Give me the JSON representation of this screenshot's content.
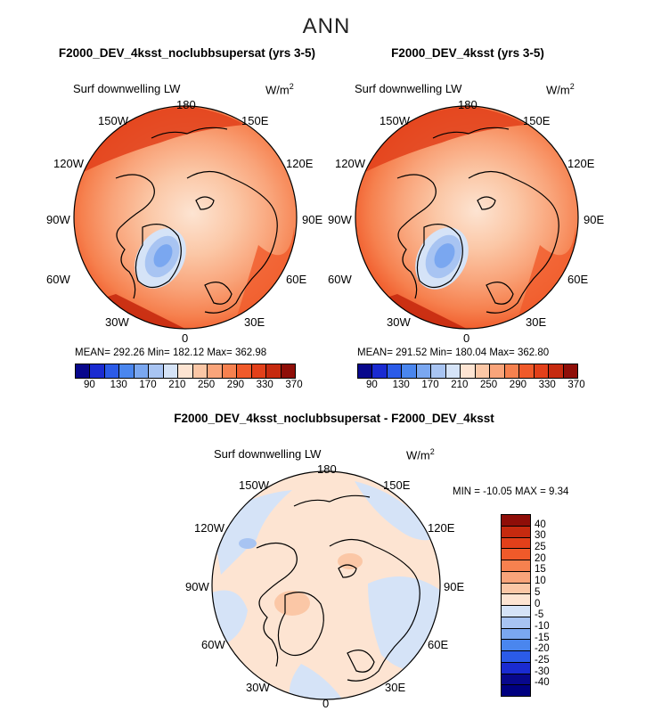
{
  "figure": {
    "suptitle": "ANN",
    "variable": "Surf downwelling LW",
    "units": "W/m",
    "units_exp": "2"
  },
  "panels": [
    {
      "title": "F2000_DEV_4ksst_noclubbsupersat (yrs 3-5)",
      "stats": "MEAN= 292.26   Min= 182.12   Max= 362.98",
      "longitudes": [
        "180",
        "150E",
        "120E",
        "90E",
        "60E",
        "30E",
        "0",
        "30W",
        "60W",
        "90W",
        "120W",
        "150W"
      ]
    },
    {
      "title": "F2000_DEV_4ksst (yrs 3-5)",
      "stats": "MEAN= 291.52   Min= 180.04   Max= 362.80",
      "longitudes": [
        "180",
        "150E",
        "120E",
        "90E",
        "60E",
        "30E",
        "0",
        "30W",
        "60W",
        "90W",
        "120W",
        "150W"
      ]
    },
    {
      "title": "F2000_DEV_4ksst_noclubbsupersat - F2000_DEV_4ksst",
      "stats": "MIN = -10.05  MAX =    9.34",
      "longitudes": [
        "180",
        "150E",
        "120E",
        "90E",
        "60E",
        "30E",
        "0",
        "30W",
        "60W",
        "90W",
        "120W",
        "150W"
      ]
    }
  ],
  "colorbar_abs": {
    "ticks": [
      "90",
      "130",
      "170",
      "210",
      "250",
      "290",
      "330",
      "370"
    ],
    "colors": [
      "#08088c",
      "#1a2bd1",
      "#2b5be8",
      "#4a86ee",
      "#7aa7f0",
      "#a8c4f2",
      "#d5e3f7",
      "#fde4d2",
      "#fbc7a6",
      "#f9a47a",
      "#f6814f",
      "#f05a2a",
      "#e2401a",
      "#c62a0f",
      "#8f0e08"
    ]
  },
  "colorbar_diff": {
    "ticks": [
      "40",
      "30",
      "25",
      "20",
      "15",
      "10",
      "5",
      "0",
      "-5",
      "-10",
      "-15",
      "-20",
      "-25",
      "-30",
      "-40"
    ],
    "colors": [
      "#8f0e08",
      "#c62a0f",
      "#e2401a",
      "#f05a2a",
      "#f6814f",
      "#f9a47a",
      "#fbc7a6",
      "#fde4d2",
      "#d5e3f7",
      "#a8c4f2",
      "#7aa7f0",
      "#4a86ee",
      "#2b5be8",
      "#1a2bd1",
      "#08088c",
      "#000080"
    ]
  },
  "chart_data": [
    {
      "type": "heatmap",
      "title": "F2000_DEV_4ksst_noclubbsupersat (yrs 3-5)",
      "projection": "north polar stereographic",
      "variable": "Surf downwelling LW",
      "units": "W/m^2",
      "mean": 292.26,
      "min": 182.12,
      "max": 362.98,
      "contour_levels": [
        90,
        110,
        130,
        150,
        170,
        190,
        210,
        230,
        250,
        270,
        290,
        310,
        330,
        350,
        370
      ]
    },
    {
      "type": "heatmap",
      "title": "F2000_DEV_4ksst (yrs 3-5)",
      "projection": "north polar stereographic",
      "variable": "Surf downwelling LW",
      "units": "W/m^2",
      "mean": 291.52,
      "min": 180.04,
      "max": 362.8,
      "contour_levels": [
        90,
        110,
        130,
        150,
        170,
        190,
        210,
        230,
        250,
        270,
        290,
        310,
        330,
        350,
        370
      ]
    },
    {
      "type": "heatmap",
      "title": "F2000_DEV_4ksst_noclubbsupersat - F2000_DEV_4ksst",
      "projection": "north polar stereographic",
      "variable": "Surf downwelling LW",
      "units": "W/m^2",
      "min": -10.05,
      "max": 9.34,
      "contour_levels": [
        -40,
        -30,
        -25,
        -20,
        -15,
        -10,
        -5,
        0,
        5,
        10,
        15,
        20,
        25,
        30,
        40
      ]
    }
  ]
}
